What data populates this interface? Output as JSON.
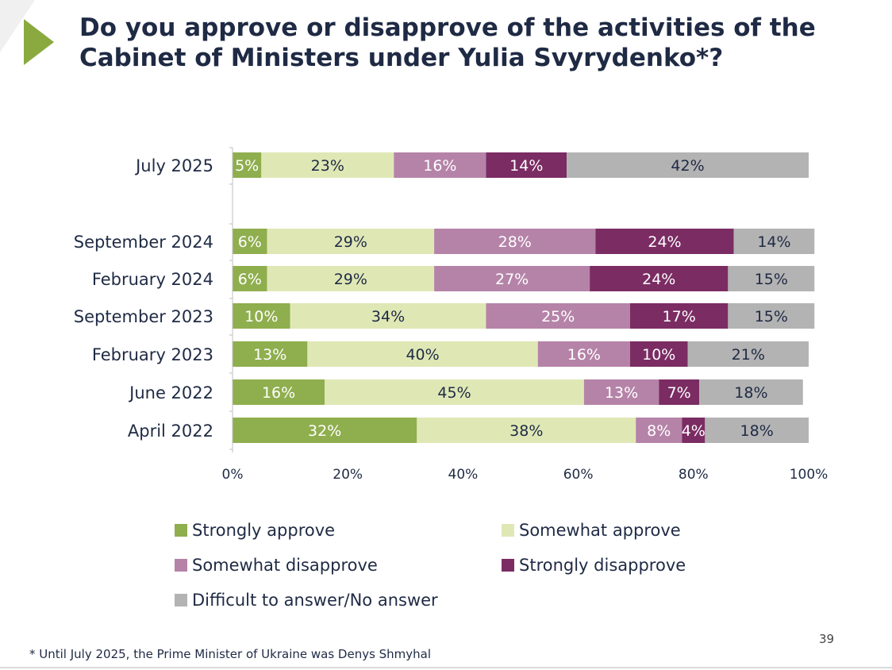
{
  "header": {
    "title_line1": "Do you approve or disapprove of the activities of the",
    "title_line2": "Cabinet of Ministers under Yulia Svyrydenko*?"
  },
  "footnote": "* Until July 2025, the Prime Minister of Ukraine was Denys Shmyhal",
  "page_number": "39",
  "colors": {
    "title": "#1f2a44",
    "accent_triangle": "#8aaa3f",
    "strongly_approve": "#8fae4e",
    "somewhat_approve": "#dfe8b5",
    "somewhat_disapprove": "#b583a8",
    "strongly_disapprove": "#7b2c63",
    "no_answer": "#b3b3b3"
  },
  "chart_data": {
    "type": "bar",
    "orientation": "horizontal",
    "stacked": true,
    "title": "Do you approve or disapprove of the activities of the Cabinet of Ministers under Yulia Svyrydenko*?",
    "categories": [
      "July 2025",
      "September 2024",
      "February 2024",
      "September 2023",
      "February 2023",
      "June 2022",
      "April 2022"
    ],
    "category_gap_after_index": 0,
    "series": [
      {
        "name": "Strongly approve",
        "color": "#8fae4e",
        "label_color": "#ffffff",
        "values": [
          5,
          6,
          6,
          10,
          13,
          16,
          32
        ],
        "labels": [
          "5%",
          "6%",
          "6%",
          "10%",
          "13%",
          "16%",
          "32%"
        ]
      },
      {
        "name": "Somewhat approve",
        "color": "#dfe8b5",
        "label_color": "#1f2a44",
        "values": [
          23,
          29,
          29,
          34,
          40,
          45,
          38
        ],
        "labels": [
          "23%",
          "29%",
          "29%",
          "34%",
          "40%",
          "45%",
          "38%"
        ]
      },
      {
        "name": "Somewhat disapprove",
        "color": "#b583a8",
        "label_color": "#ffffff",
        "values": [
          16,
          28,
          27,
          25,
          16,
          13,
          8
        ],
        "labels": [
          "16%",
          "28%",
          "27%",
          "25%",
          "16%",
          "13%",
          "8%"
        ]
      },
      {
        "name": "Strongly disapprove",
        "color": "#7b2c63",
        "label_color": "#ffffff",
        "values": [
          14,
          24,
          24,
          17,
          10,
          7,
          4
        ],
        "labels": [
          "14%",
          "24%",
          "24%",
          "17%",
          "10%",
          "7%",
          "4%"
        ]
      },
      {
        "name": "Difficult to answer/No answer",
        "color": "#b3b3b3",
        "label_color": "#1f2a44",
        "values": [
          42,
          14,
          15,
          15,
          21,
          18,
          18
        ],
        "labels": [
          "42%",
          "14%",
          "15%",
          "15%",
          "21%",
          "18%",
          "18%"
        ]
      }
    ],
    "xlim": [
      0,
      100
    ],
    "x_ticks": [
      0,
      20,
      40,
      60,
      80,
      100
    ],
    "x_tick_labels": [
      "0%",
      "20%",
      "40%",
      "60%",
      "80%",
      "100%"
    ],
    "xlabel": "",
    "ylabel": "",
    "grid": false,
    "legend_position": "bottom"
  }
}
